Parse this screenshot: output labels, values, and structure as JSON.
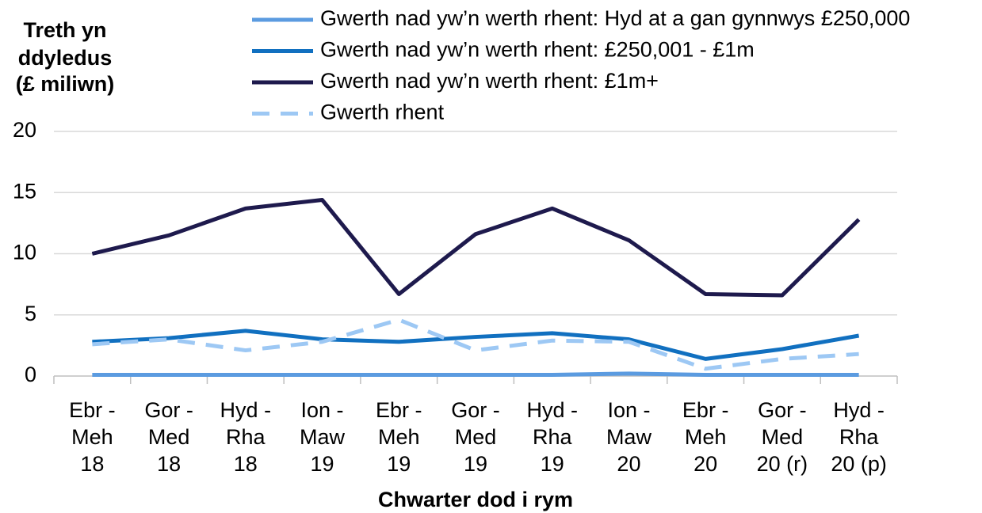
{
  "chart_data": {
    "type": "line",
    "y_label": [
      "Treth yn",
      "ddyledus",
      "(£ miliwn)"
    ],
    "x_label": "Chwarter dod i rym",
    "categories": [
      [
        "Ebr -",
        "Meh",
        "18"
      ],
      [
        "Gor -",
        "Med",
        "18"
      ],
      [
        "Hyd -",
        "Rha",
        "18"
      ],
      [
        "Ion -",
        "Maw",
        "19"
      ],
      [
        "Ebr -",
        "Meh",
        "19"
      ],
      [
        "Gor -",
        "Med",
        "19"
      ],
      [
        "Hyd -",
        "Rha",
        "19"
      ],
      [
        "Ion -",
        "Maw",
        "20"
      ],
      [
        "Ebr -",
        "Meh",
        "20"
      ],
      [
        "Gor -",
        "Med",
        "20 (r)"
      ],
      [
        "Hyd -",
        "Rha",
        "20 (p)"
      ]
    ],
    "series": [
      {
        "name": "Gwerth nad yw’n werth rhent: Hyd at a gan gynnwys £250,000",
        "color": "#5b9be0",
        "dashed": false,
        "values": [
          0.1,
          0.1,
          0.1,
          0.1,
          0.1,
          0.1,
          0.1,
          0.2,
          0.1,
          0.1,
          0.1
        ]
      },
      {
        "name": "Gwerth nad yw’n werth rhent: £250,001 - £1m",
        "color": "#1170c0",
        "dashed": false,
        "values": [
          2.8,
          3.1,
          3.7,
          3.0,
          2.8,
          3.2,
          3.5,
          3.0,
          1.4,
          2.2,
          3.3
        ]
      },
      {
        "name": "Gwerth nad yw’n werth rhent: £1m+",
        "color": "#1e1a4d",
        "dashed": false,
        "values": [
          10.0,
          11.5,
          13.7,
          14.4,
          6.7,
          11.6,
          13.7,
          11.1,
          6.7,
          6.6,
          12.8
        ]
      },
      {
        "name": "Gwerth rhent",
        "color": "#9dc8f4",
        "dashed": true,
        "values": [
          2.6,
          3.0,
          2.1,
          2.8,
          4.6,
          2.1,
          2.9,
          2.8,
          0.6,
          1.4,
          1.8
        ]
      }
    ],
    "ylim": [
      0,
      20
    ],
    "yticks": [
      0,
      5,
      10,
      15,
      20
    ],
    "grid": true,
    "legend": "top"
  }
}
